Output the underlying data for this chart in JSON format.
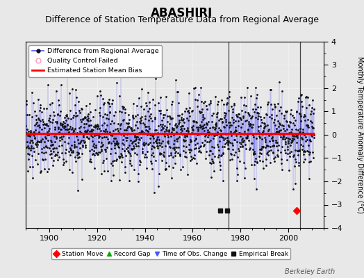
{
  "title": "ABASHIRI",
  "subtitle": "Difference of Station Temperature Data from Regional Average",
  "ylabel": "Monthly Temperature Anomaly Difference (°C)",
  "xlim": [
    1890,
    2015
  ],
  "ylim": [
    -4,
    4
  ],
  "yticks": [
    -4,
    -3,
    -2,
    -1,
    0,
    1,
    2,
    3,
    4
  ],
  "xticks": [
    1900,
    1920,
    1940,
    1960,
    1980,
    2000
  ],
  "bias_value": 0.05,
  "vertical_lines": [
    1975,
    2005
  ],
  "empirical_breaks": [
    1971.5,
    1974.5
  ],
  "station_move": [
    2003.5
  ],
  "background_color": "#e8e8e8",
  "plot_bg_color": "#e8e8e8",
  "line_color": "#5555ff",
  "bias_color": "#ff0000",
  "seed": 42,
  "n_points": 1452,
  "start_year": 1890,
  "watermark": "Berkeley Earth",
  "title_fontsize": 12,
  "subtitle_fontsize": 9
}
